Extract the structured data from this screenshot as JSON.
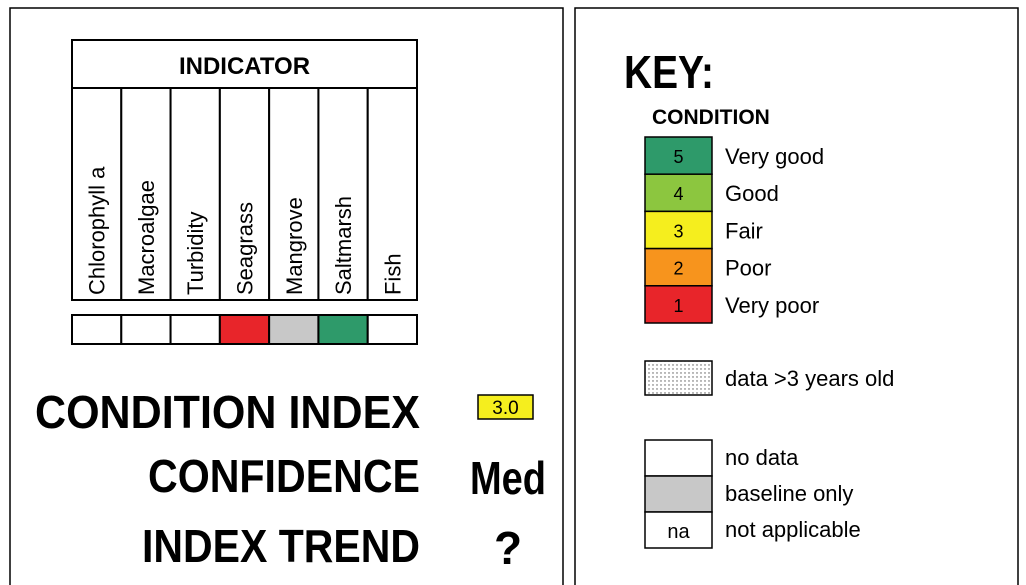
{
  "indicator_table": {
    "title": "INDICATOR",
    "indicators": [
      {
        "name": "Chlorophyll a",
        "color": "#ffffff"
      },
      {
        "name": "Macroalgae",
        "color": "#ffffff"
      },
      {
        "name": "Turbidity",
        "color": "#ffffff"
      },
      {
        "name": "Seagrass",
        "color": "#e8252a"
      },
      {
        "name": "Mangrove",
        "color": "#c8c8c8"
      },
      {
        "name": "Saltmarsh",
        "color": "#2e9a6a"
      },
      {
        "name": "Fish",
        "color": "#ffffff"
      }
    ]
  },
  "summary": {
    "condition_index": {
      "label": "CONDITION INDEX",
      "value": "3.0",
      "color": "#f5ee1e"
    },
    "confidence": {
      "label": "CONFIDENCE",
      "value": "Med"
    },
    "index_trend": {
      "label": "INDEX TREND",
      "value": "?"
    }
  },
  "key": {
    "title": "KEY:",
    "condition_title": "CONDITION",
    "conditions": [
      {
        "value": 5,
        "label": "Very good",
        "color": "#2e9a6a"
      },
      {
        "value": 4,
        "label": "Good",
        "color": "#8cc63f"
      },
      {
        "value": 3,
        "label": "Fair",
        "color": "#f5ee1e"
      },
      {
        "value": 2,
        "label": "Poor",
        "color": "#f7941d"
      },
      {
        "value": 1,
        "label": "Very poor",
        "color": "#e8252a"
      }
    ],
    "old_data": {
      "label": "data >3 years old"
    },
    "other": [
      {
        "swatch": "",
        "label": "no data",
        "color": "#ffffff"
      },
      {
        "swatch": "",
        "label": "baseline only",
        "color": "#c8c8c8"
      },
      {
        "swatch": "na",
        "label": "not applicable",
        "color": "#ffffff"
      }
    ]
  }
}
